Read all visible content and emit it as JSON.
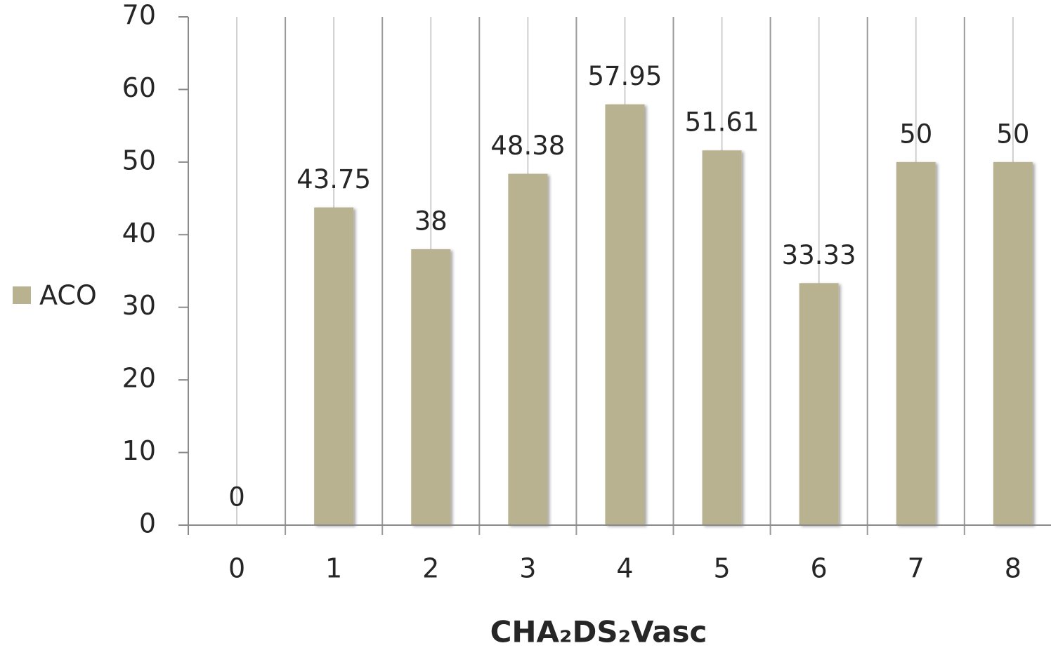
{
  "chart_data": {
    "type": "bar",
    "categories": [
      "0",
      "1",
      "2",
      "3",
      "4",
      "5",
      "6",
      "7",
      "8"
    ],
    "series": [
      {
        "name": "ACO",
        "color": "#b8b291",
        "values": [
          0,
          43.75,
          38,
          48.38,
          57.95,
          51.61,
          33.33,
          50,
          50
        ]
      }
    ],
    "xlabel": "CHA₂DS₂Vasc",
    "ylim": [
      0,
      70
    ],
    "yticks": [
      0,
      10,
      20,
      30,
      40,
      50,
      60,
      70
    ],
    "legend": "left",
    "grid": true
  }
}
